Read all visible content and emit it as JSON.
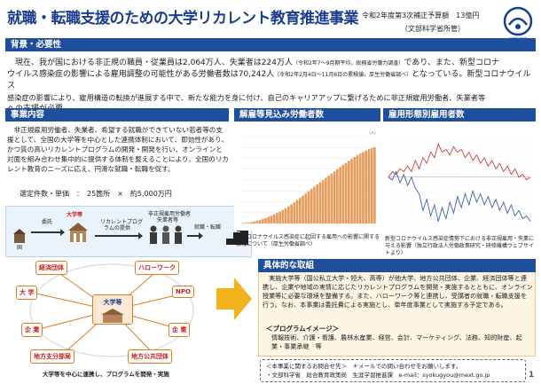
{
  "header": {
    "title": "就職・転職支援のための大学リカレント教育推進事業",
    "budget": "令和2年度第3次補正予算額　13億円",
    "ministry": "（文部科学省所管）",
    "logo_text": "文部科学省"
  },
  "background": {
    "heading": "背景・必要性",
    "line1_a": "現在、我が国における非正規の職員・従業員は2,064万人、失業者は224万人",
    "line1_small": "（令和2年7～9月期平均，総務省労働力調査）",
    "line1_b": "であり、また、新型コロナ",
    "line2_a": "ウイルス感染症の影響による雇用調整の可能性がある労働者数は70,242人",
    "line2_small": "（令和2年2月4日～11月6日の累積値，厚生労働省調べ）",
    "line2_b": "となっている。新型コロナウイルス",
    "line3": "感染症の影響により、雇用構造の転換が進展する中で、新たな能力を身に付け、自己のキャリアアップに繋げるために非正規雇用労働者、失業者等",
    "line4": "への支援が必要。"
  },
  "content": {
    "heading": "事業内容",
    "text": "非正規雇用労働者、失業者、希望する就職ができていない若者等の支援として、全国の大学等を中心とした連携体制において、即効性があり、かつ質の高いリカレントプログラムの開発・開発を行い、オンラインと対面を組み合わせ集中的に提供する体制を整えることにより、全国のリカレント教育のニーズに応え、円滑な就職・転職を促す。",
    "cost": "選定件数・単価　：　25箇所　×　約5,000万円"
  },
  "flow": {
    "country": "国",
    "commission": "委託",
    "university": "大学等",
    "recurrent_1": "リカレントプログ",
    "recurrent_2": "ラムの提供",
    "workers_1": "非正規雇用労働者",
    "workers_2": "失業者等",
    "job": "就職・転職"
  },
  "network": {
    "center_1": "大学等",
    "employers": "経済団体",
    "hellowork": "ハローワーク",
    "university": "大 学",
    "npo": "NPO",
    "company_left": "企 業",
    "company_right": "企 業",
    "regional_branch": "地方支分部局",
    "local_gov": "地方公共団体",
    "caption": "大学等を中心に連携し、プログラムを開発・実施"
  },
  "chart1": {
    "heading": "解雇等見込み労働者数",
    "ylabel": "（人）",
    "caption": "新型コロナウイルス感染症に起因する雇用への影響に関する情報について（厚生労働省調べ）"
  },
  "chart2": {
    "heading": "雇用形態別雇用者数",
    "caption": "新型コロナウイルス感染症情勢下における非正規雇用・失業に与える影響（独立行政法人労働政策研究・研修機構ウェブサイトより）"
  },
  "chart_data": [
    {
      "type": "bar",
      "title": "解雇等見込み労働者数",
      "ylabel": "（人）",
      "values": [
        300,
        600,
        900,
        1300,
        1800,
        2500,
        3200,
        4100,
        5000,
        6100,
        7200,
        8300,
        9600,
        11000,
        12500,
        14000,
        15800,
        17600,
        19500,
        21500,
        23500,
        25500,
        27600,
        29700,
        31800,
        33900,
        36000,
        38000,
        40000,
        42000,
        44000,
        46000,
        48000,
        50000,
        52000,
        54000,
        55800,
        57600,
        59400,
        61200,
        62800,
        64400,
        65800,
        67200,
        68400,
        69400,
        70242
      ],
      "ylim": [
        0,
        80000
      ]
    },
    {
      "type": "line",
      "title": "雇用形態別雇用者数",
      "series": [
        {
          "values": [
            0,
            20,
            10,
            30,
            20,
            40,
            20,
            60,
            30,
            70,
            50,
            90,
            70,
            120,
            90,
            100,
            80,
            110,
            90,
            100,
            70,
            90,
            60,
            80,
            50,
            70,
            40,
            60,
            30,
            50,
            20,
            40,
            10,
            30,
            0,
            10,
            -10,
            0
          ]
        },
        {
          "values": [
            0,
            -10,
            20,
            -20,
            10,
            -30,
            0,
            -40,
            -60,
            -120,
            -80,
            -140,
            -100,
            -160,
            -110,
            -150,
            -90,
            -130,
            -70,
            -110,
            -60,
            -100,
            -50,
            -90,
            -60,
            -100,
            -70,
            -110,
            -80,
            -120,
            -90,
            -130,
            -100,
            -140,
            -120,
            -150,
            -140,
            -160
          ]
        }
      ]
    }
  ],
  "initiatives": {
    "heading": "具体的な取組",
    "text": "実施大学等（国公私立大学・短大、高専）が他大学、地方公共団体、企業、経済団体等と連携し、企業や地域の実情に応じたリカレントプログラムを開発・実施するとともに、オンライン授業等に必要な環境を整備する。また、ハローワーク等と連携し、受講者の就職・転職支援を行う。なお、本事業は委託費による実施とし、単年度事業として実施する予定である。",
    "program_title": "＜プログラムイメージ＞",
    "program_text": "情報技術、介護・看護、農林水産業、経営、会計、マーケティング、法務、知的財産、起業・事業承継　等"
  },
  "contact": {
    "line1": "＜本事業に関するお問合せ先＞　＊メールでの問い合わせをお願いします。",
    "line2": "・文部科学省　総合教育政策局　生涯学習推進課　e-mail：syokugyou@mext.go.jp"
  },
  "page_number": "1",
  "colors": {
    "title": "#1a3e8c",
    "header_bar": "#1f4e9c",
    "network_border": "#e07a1c",
    "network_text": "#c81e1e",
    "initiative_bg": "#fdf4e3",
    "arrow": "#f3b21b"
  }
}
